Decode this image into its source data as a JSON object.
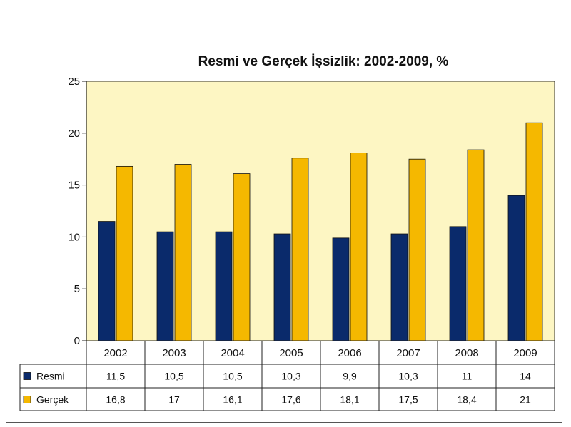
{
  "chart_data": {
    "type": "bar",
    "title": "Resmi ve Gerçek İşsizlik: 2002-2009, %",
    "categories": [
      "2002",
      "2003",
      "2004",
      "2005",
      "2006",
      "2007",
      "2008",
      "2009"
    ],
    "series": [
      {
        "name": "Resmi",
        "color": "#0a2a6b",
        "values": [
          11.5,
          10.5,
          10.5,
          10.3,
          9.9,
          10.3,
          11,
          14
        ],
        "labels": [
          "11,5",
          "10,5",
          "10,5",
          "10,3",
          "9,9",
          "10,3",
          "11",
          "14"
        ]
      },
      {
        "name": "Gerçek",
        "color": "#f5b800",
        "values": [
          16.8,
          17,
          16.1,
          17.6,
          18.1,
          17.5,
          18.4,
          21
        ],
        "labels": [
          "16,8",
          "17",
          "16,1",
          "17,6",
          "18,1",
          "17,5",
          "18,4",
          "21"
        ]
      }
    ],
    "ylim": [
      0,
      25
    ],
    "yticks": [
      0,
      5,
      10,
      15,
      20,
      25
    ],
    "plot_background": "#fdf6c3",
    "legend": "data-table",
    "grid": false
  }
}
